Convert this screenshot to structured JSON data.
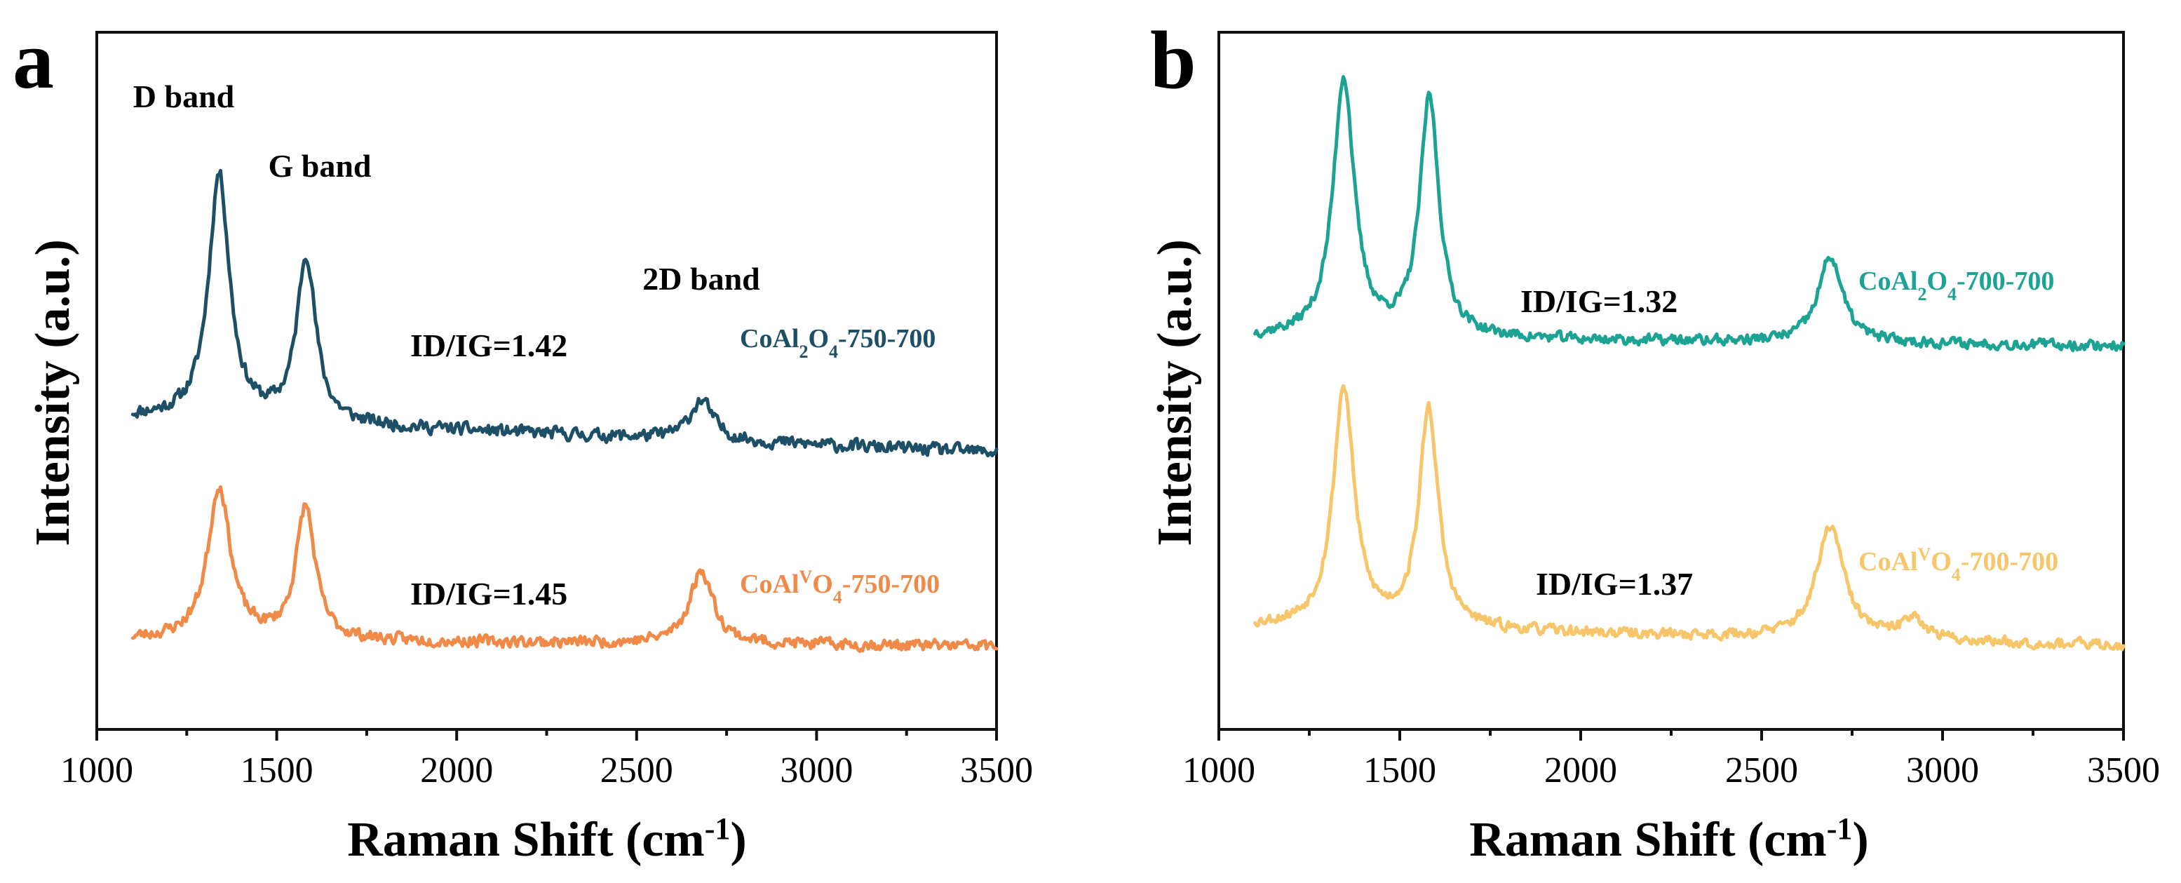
{
  "chart_data": [
    {
      "type": "line",
      "panel": "a",
      "xlabel": "Raman Shift (cm",
      "xlabel_sup": "-1",
      "xlabel_close": ")",
      "ylabel": "Intensity (a.u.)",
      "xlim": [
        1000,
        3500
      ],
      "ylim": [
        0,
        10.5
      ],
      "xticks": [
        1000,
        1500,
        2000,
        2500,
        3000,
        3500
      ],
      "y_ticks_shown": false,
      "annotations": [
        {
          "id": "d_band",
          "text": "D band",
          "x": 1220,
          "y": 9.45
        },
        {
          "id": "g_band",
          "text": "G band",
          "x": 1475,
          "y": 8.35
        },
        {
          "id": "twod_band",
          "text": "2D band",
          "x": 2580,
          "y": 6.6
        }
      ],
      "series": [
        {
          "id": "a1",
          "name_base": "CoAl",
          "name_sub1": "2",
          "name_mid": "O",
          "name_sub2": "4",
          "name_end": "-750-700",
          "color": "#1d4f67",
          "ratio_label": "ID/IG=1.42",
          "baseline": 4.7,
          "slope": -0.00022,
          "noise": 0.12,
          "peaks": [
            {
              "center": 1340,
              "height": 3.7,
              "width": 35
            },
            {
              "center": 1582,
              "height": 2.5,
              "width": 32
            },
            {
              "center": 2680,
              "height": 0.6,
              "width": 40
            }
          ],
          "x_range": [
            1100,
            3500
          ],
          "seed": 11
        },
        {
          "id": "a2",
          "name_base": "CoAl",
          "name_sup1": "V",
          "name_mid": "O",
          "name_sub2": "4",
          "name_end": "-750-700",
          "color": "#f08a48",
          "ratio_label": "ID/IG=1.45",
          "baseline": 1.35,
          "slope": -4e-05,
          "noise": 0.11,
          "peaks": [
            {
              "center": 1340,
              "height": 2.3,
              "width": 38
            },
            {
              "center": 1580,
              "height": 2.0,
              "width": 32
            },
            {
              "center": 2680,
              "height": 1.1,
              "width": 40
            }
          ],
          "x_range": [
            1100,
            3500
          ],
          "seed": 23
        }
      ]
    },
    {
      "type": "line",
      "panel": "b",
      "xlabel": "Raman Shift (cm",
      "xlabel_sup": "-1",
      "xlabel_close": ")",
      "ylabel": "Intensity (a.u.)",
      "xlim": [
        1000,
        3500
      ],
      "ylim": [
        0,
        10.5
      ],
      "xticks": [
        1000,
        1500,
        2000,
        2500,
        3000,
        3500
      ],
      "y_ticks_shown": false,
      "annotations": [],
      "series": [
        {
          "id": "b1",
          "name_base": "CoAl",
          "name_sub1": "2",
          "name_mid": "O",
          "name_sub2": "4",
          "name_end": "-700-700",
          "color": "#1ca394",
          "ratio_label": "ID/IG=1.32",
          "baseline": 5.9,
          "slope": -5e-05,
          "noise": 0.1,
          "peaks": [
            {
              "center": 1345,
              "height": 3.9,
              "width": 35
            },
            {
              "center": 1582,
              "height": 3.6,
              "width": 32
            },
            {
              "center": 2690,
              "height": 1.3,
              "width": 40
            }
          ],
          "x_range": [
            1100,
            3500
          ],
          "seed": 37
        },
        {
          "id": "b2",
          "name_base": "CoAl",
          "name_sup1": "V",
          "name_mid": "O",
          "name_sub2": "4",
          "name_end": "-700-700",
          "color": "#f7c66a",
          "ratio_label": "ID/IG=1.37",
          "baseline": 1.55,
          "slope": -0.00012,
          "noise": 0.1,
          "peaks": [
            {
              "center": 1345,
              "height": 3.6,
              "width": 35
            },
            {
              "center": 1580,
              "height": 3.3,
              "width": 32
            },
            {
              "center": 2690,
              "height": 1.7,
              "width": 45
            },
            {
              "center": 2920,
              "height": 0.35,
              "width": 35
            }
          ],
          "x_range": [
            1100,
            3500
          ],
          "seed": 53
        }
      ]
    }
  ]
}
